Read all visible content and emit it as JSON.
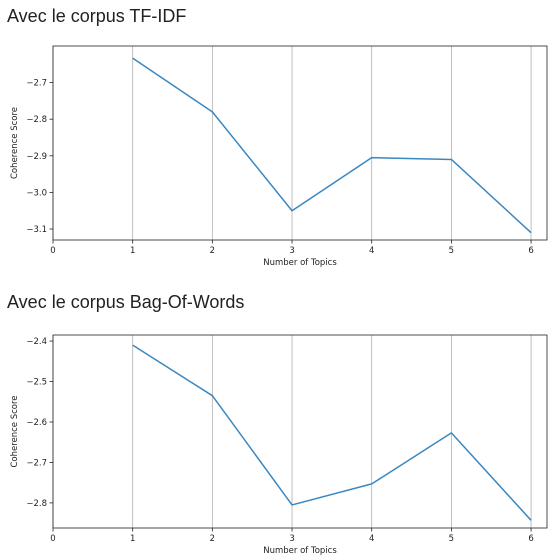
{
  "headings": [
    "Avec le corpus TF-IDF",
    "Avec le corpus Bag-Of-Words"
  ],
  "chart_data": [
    {
      "type": "line",
      "xlabel": "Number of Topics",
      "ylabel": "Coherence Score",
      "x": [
        1,
        2,
        3,
        4,
        5,
        6
      ],
      "values": [
        -2.633,
        -2.78,
        -3.05,
        -2.905,
        -2.91,
        -3.11
      ],
      "xlim": [
        0,
        6.2
      ],
      "ylim": [
        -3.13,
        -2.6
      ],
      "xticks": [
        0,
        1,
        2,
        3,
        4,
        5,
        6
      ],
      "yticks": [
        -2.7,
        -2.8,
        -2.9,
        -3.0,
        -3.1
      ],
      "ytick_labels": [
        "-2.7",
        "-2.8",
        "-2.9",
        "-3.0",
        "-3.1"
      ],
      "grid": "vertical",
      "line_color": "#3b87c0"
    },
    {
      "type": "line",
      "xlabel": "Number of Topics",
      "ylabel": "Coherence Score",
      "x": [
        1,
        2,
        3,
        4,
        5,
        6
      ],
      "values": [
        -2.41,
        -2.535,
        -2.805,
        -2.753,
        -2.627,
        -2.843
      ],
      "xlim": [
        0,
        6.2
      ],
      "ylim": [
        -2.862,
        -2.385
      ],
      "xticks": [
        0,
        1,
        2,
        3,
        4,
        5,
        6
      ],
      "yticks": [
        -2.4,
        -2.5,
        -2.6,
        -2.7,
        -2.8
      ],
      "ytick_labels": [
        "-2.4",
        "-2.5",
        "-2.6",
        "-2.7",
        "-2.8"
      ],
      "grid": "vertical",
      "line_color": "#3b87c0"
    }
  ]
}
